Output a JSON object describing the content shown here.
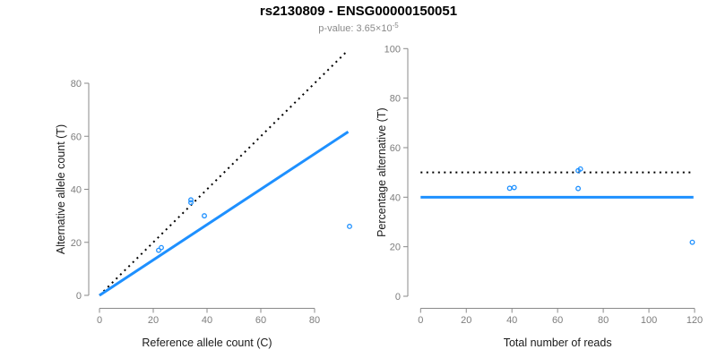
{
  "header": {
    "title": "rs2130809 - ENSG00000150051",
    "subtitle_prefix": "p-value: 3.65×10",
    "subtitle_exponent": "-5"
  },
  "colors": {
    "accent_blue": "#1E90FF",
    "axis_line_gray": "#8a8a8a",
    "tick_label_gray": "#7d7d7d",
    "axis_title_dark": "#1a1a1a",
    "identity_line_black": "#000000"
  },
  "chart_data": [
    {
      "type": "scatter",
      "panel": "left",
      "marker": "open-circle",
      "xlabel": "Reference allele count (C)",
      "ylabel": "Alternative allele count (T)",
      "xticks": [
        0,
        20,
        40,
        60,
        80
      ],
      "yticks": [
        0,
        20,
        40,
        60,
        80
      ],
      "xlim": [
        0,
        93
      ],
      "ylim": [
        0,
        93
      ],
      "grid": false,
      "points": [
        {
          "x": 22,
          "y": 17
        },
        {
          "x": 23,
          "y": 18
        },
        {
          "x": 34,
          "y": 35
        },
        {
          "x": 34,
          "y": 36
        },
        {
          "x": 39,
          "y": 30
        },
        {
          "x": 93,
          "y": 26
        }
      ],
      "lines": [
        {
          "name": "identity-line",
          "style": "dotted",
          "color": "#000000",
          "width": 2,
          "x1": 0,
          "y1": 0,
          "x2": 92.5,
          "y2": 92.5
        },
        {
          "name": "regression-line",
          "style": "solid",
          "color": "#1E90FF",
          "width": 3,
          "x1": 0,
          "y1": 0,
          "x2": 92.5,
          "y2": 61.7
        }
      ]
    },
    {
      "type": "scatter",
      "panel": "right",
      "marker": "open-circle",
      "xlabel": "Total number of reads",
      "ylabel": "Percentage alternative (T)",
      "xticks": [
        0,
        20,
        40,
        60,
        80,
        100,
        120
      ],
      "yticks": [
        0,
        20,
        40,
        60,
        80,
        100
      ],
      "xlim": [
        0,
        120
      ],
      "ylim": [
        0,
        100
      ],
      "grid": false,
      "points": [
        {
          "x": 39,
          "y": 43.6
        },
        {
          "x": 41,
          "y": 43.9
        },
        {
          "x": 69,
          "y": 43.5
        },
        {
          "x": 69,
          "y": 50.7
        },
        {
          "x": 70,
          "y": 51.4
        },
        {
          "x": 119,
          "y": 21.8
        }
      ],
      "lines": [
        {
          "name": "expected-50pct-line",
          "style": "dotted",
          "color": "#000000",
          "width": 2,
          "x1": 0,
          "y1": 50,
          "x2": 119.5,
          "y2": 50
        },
        {
          "name": "fitted-40pct-line",
          "style": "solid",
          "color": "#1E90FF",
          "width": 3,
          "x1": 0,
          "y1": 40,
          "x2": 119.5,
          "y2": 40
        }
      ]
    }
  ]
}
